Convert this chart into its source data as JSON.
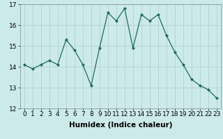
{
  "x": [
    0,
    1,
    2,
    3,
    4,
    5,
    6,
    7,
    8,
    9,
    10,
    11,
    12,
    13,
    14,
    15,
    16,
    17,
    18,
    19,
    20,
    21,
    22,
    23
  ],
  "y": [
    14.1,
    13.9,
    14.1,
    14.3,
    14.1,
    15.3,
    14.8,
    14.1,
    13.1,
    14.9,
    16.6,
    16.2,
    16.8,
    14.9,
    16.5,
    16.2,
    16.5,
    15.5,
    14.7,
    14.1,
    13.4,
    13.1,
    12.9,
    12.5
  ],
  "bg_color": "#cdeaea",
  "line_color": "#1a6b5a",
  "xlabel": "Humidex (Indice chaleur)",
  "ylim": [
    12,
    17
  ],
  "xlim": [
    -0.5,
    23.5
  ],
  "yticks": [
    12,
    13,
    14,
    15,
    16,
    17
  ],
  "xticks": [
    0,
    1,
    2,
    3,
    4,
    5,
    6,
    7,
    8,
    9,
    10,
    11,
    12,
    13,
    14,
    15,
    16,
    17,
    18,
    19,
    20,
    21,
    22,
    23
  ],
  "grid_color": "#b0cccc",
  "label_fontsize": 7.5,
  "tick_fontsize": 6.5
}
